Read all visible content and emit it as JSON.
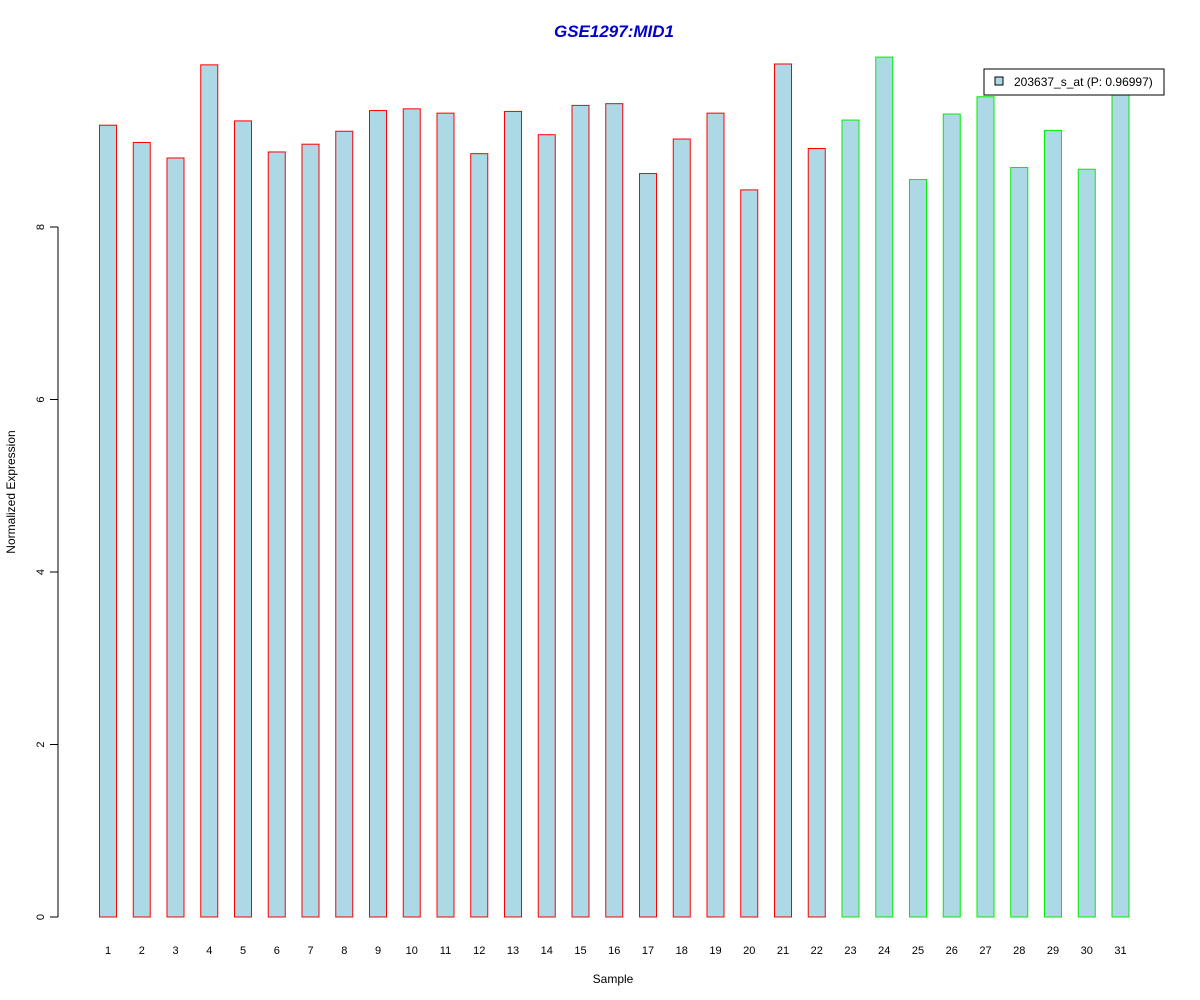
{
  "chart_data": {
    "type": "bar",
    "title": "GSE1297:MID1",
    "title_color": "#0000cc",
    "xlabel": "Sample",
    "ylabel": "Normalized Expression",
    "ylim": [
      0,
      9.95
    ],
    "yticks": [
      0,
      2,
      4,
      6,
      8
    ],
    "grid": false,
    "legend_position": "top-right",
    "legend": [
      {
        "label": "203637_s_at (P: 0.96997)",
        "fill": "#add8e6"
      }
    ],
    "bar_fill": "#add8e6",
    "categories": [
      "1",
      "2",
      "3",
      "4",
      "5",
      "6",
      "7",
      "8",
      "9",
      "10",
      "11",
      "12",
      "13",
      "14",
      "15",
      "16",
      "17",
      "18",
      "19",
      "20",
      "21",
      "22",
      "23",
      "24",
      "25",
      "26",
      "27",
      "28",
      "29",
      "30",
      "31"
    ],
    "values": [
      9.18,
      8.98,
      8.8,
      9.88,
      9.23,
      8.87,
      8.96,
      9.11,
      9.35,
      9.37,
      9.32,
      8.85,
      9.34,
      9.07,
      9.41,
      9.43,
      8.62,
      9.02,
      9.32,
      8.43,
      9.89,
      8.91,
      9.24,
      9.97,
      8.55,
      9.31,
      9.51,
      8.69,
      9.12,
      8.67,
      9.62
    ],
    "groups": [
      {
        "samples": "1-22",
        "border_color": "#ff0000"
      },
      {
        "samples": "23-31",
        "border_color": "#00ee00"
      }
    ],
    "group_boundary": 22
  }
}
